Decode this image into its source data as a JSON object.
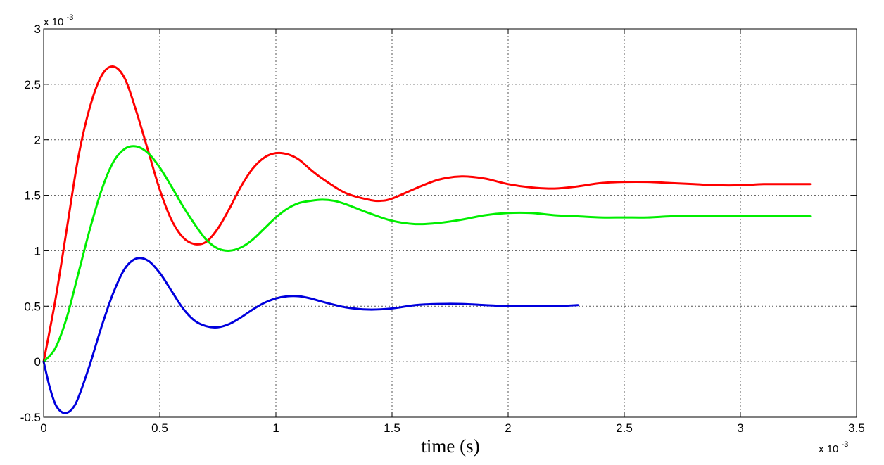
{
  "chart_data": {
    "type": "line",
    "title": "",
    "xlabel": "time (s)",
    "ylabel": "",
    "x_exponent_label": "x 10",
    "x_exponent_power": "-3",
    "y_exponent_label": "x 10",
    "y_exponent_power": "-3",
    "xlim": [
      0,
      3.5
    ],
    "ylim": [
      -0.5,
      3
    ],
    "x_ticks": [
      "0",
      "0.5",
      "1",
      "1.5",
      "2",
      "2.5",
      "3",
      "3.5"
    ],
    "y_ticks": [
      "-0.5",
      "0",
      "0.5",
      "1",
      "1.5",
      "2",
      "2.5",
      "3"
    ],
    "x_tick_values": [
      0,
      0.5,
      1,
      1.5,
      2,
      2.5,
      3,
      3.5
    ],
    "y_tick_values": [
      -0.5,
      0,
      0.5,
      1,
      1.5,
      2,
      2.5,
      3
    ],
    "grid": true,
    "series": [
      {
        "color": "#ff0000",
        "x": [
          0,
          0.05,
          0.1,
          0.15,
          0.2,
          0.25,
          0.3,
          0.35,
          0.4,
          0.45,
          0.5,
          0.55,
          0.6,
          0.65,
          0.7,
          0.75,
          0.8,
          0.85,
          0.9,
          0.95,
          1.0,
          1.05,
          1.1,
          1.15,
          1.2,
          1.3,
          1.4,
          1.45,
          1.5,
          1.6,
          1.7,
          1.8,
          1.9,
          2.0,
          2.1,
          2.2,
          2.3,
          2.4,
          2.5,
          2.6,
          2.7,
          2.8,
          2.9,
          3.0,
          3.1,
          3.2,
          3.3
        ],
        "y": [
          0,
          0.55,
          1.2,
          1.85,
          2.3,
          2.58,
          2.66,
          2.55,
          2.25,
          1.9,
          1.55,
          1.28,
          1.12,
          1.06,
          1.08,
          1.2,
          1.38,
          1.58,
          1.74,
          1.84,
          1.88,
          1.87,
          1.82,
          1.73,
          1.65,
          1.52,
          1.46,
          1.45,
          1.47,
          1.56,
          1.64,
          1.67,
          1.65,
          1.6,
          1.57,
          1.56,
          1.58,
          1.61,
          1.62,
          1.62,
          1.61,
          1.6,
          1.59,
          1.59,
          1.6,
          1.6,
          1.6
        ]
      },
      {
        "color": "#00ee00",
        "x": [
          0,
          0.05,
          0.1,
          0.15,
          0.2,
          0.25,
          0.3,
          0.35,
          0.4,
          0.45,
          0.5,
          0.55,
          0.6,
          0.65,
          0.7,
          0.75,
          0.8,
          0.85,
          0.9,
          0.95,
          1.0,
          1.05,
          1.1,
          1.15,
          1.2,
          1.25,
          1.3,
          1.4,
          1.5,
          1.6,
          1.7,
          1.8,
          1.9,
          2.0,
          2.1,
          2.2,
          2.3,
          2.4,
          2.5,
          2.6,
          2.7,
          2.8,
          2.9,
          3.0,
          3.1,
          3.2,
          3.3
        ],
        "y": [
          0,
          0.12,
          0.4,
          0.8,
          1.2,
          1.55,
          1.8,
          1.92,
          1.94,
          1.88,
          1.75,
          1.58,
          1.4,
          1.24,
          1.1,
          1.02,
          1.0,
          1.03,
          1.1,
          1.2,
          1.3,
          1.38,
          1.43,
          1.45,
          1.46,
          1.45,
          1.42,
          1.34,
          1.27,
          1.24,
          1.25,
          1.28,
          1.32,
          1.34,
          1.34,
          1.32,
          1.31,
          1.3,
          1.3,
          1.3,
          1.31,
          1.31,
          1.31,
          1.31,
          1.31,
          1.31,
          1.31
        ]
      },
      {
        "color": "#0000dd",
        "x": [
          0,
          0.025,
          0.05,
          0.075,
          0.1,
          0.125,
          0.15,
          0.2,
          0.25,
          0.3,
          0.35,
          0.4,
          0.45,
          0.5,
          0.55,
          0.6,
          0.65,
          0.7,
          0.75,
          0.8,
          0.85,
          0.9,
          0.95,
          1.0,
          1.05,
          1.1,
          1.15,
          1.2,
          1.3,
          1.4,
          1.5,
          1.6,
          1.7,
          1.8,
          1.9,
          2.0,
          2.1,
          2.2,
          2.3
        ],
        "y": [
          0,
          -0.22,
          -0.38,
          -0.45,
          -0.46,
          -0.42,
          -0.32,
          -0.02,
          0.32,
          0.62,
          0.84,
          0.93,
          0.91,
          0.8,
          0.64,
          0.48,
          0.37,
          0.32,
          0.31,
          0.34,
          0.4,
          0.47,
          0.53,
          0.57,
          0.59,
          0.59,
          0.57,
          0.54,
          0.49,
          0.47,
          0.48,
          0.51,
          0.52,
          0.52,
          0.51,
          0.5,
          0.5,
          0.5,
          0.51
        ]
      }
    ]
  }
}
